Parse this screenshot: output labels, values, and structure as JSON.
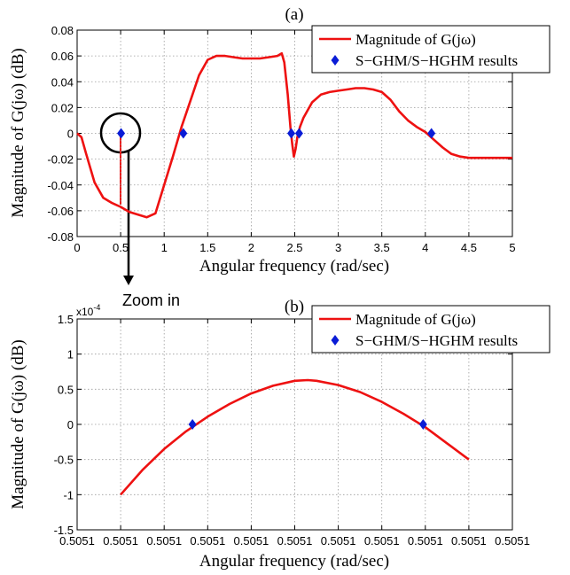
{
  "chart_data": [
    {
      "panel_label": "(a)",
      "type": "line",
      "xlabel": "Angular frequency (rad/sec)",
      "ylabel": "Magnitude of G(jω) (dB)",
      "xlim": [
        0,
        5
      ],
      "ylim": [
        -0.08,
        0.08
      ],
      "xticks": [
        0,
        0.5,
        1,
        1.5,
        2,
        2.5,
        3,
        3.5,
        4,
        4.5,
        5
      ],
      "xtick_labels": [
        "0",
        "0.5",
        "1",
        "1.5",
        "2",
        "2.5",
        "3",
        "3.5",
        "4",
        "4.5",
        "5"
      ],
      "yticks": [
        -0.08,
        -0.06,
        -0.04,
        -0.02,
        0,
        0.02,
        0.04,
        0.06,
        0.08
      ],
      "ytick_labels": [
        "-0.08",
        "-0.06",
        "-0.04",
        "-0.02",
        "0",
        "0.02",
        "0.04",
        "0.06",
        "0.08"
      ],
      "grid": true,
      "legend_position": "top-right",
      "series": [
        {
          "name": "Magnitude of G(jω)",
          "kind": "line",
          "color": "#ee1111",
          "x": [
            0,
            0.05,
            0.1,
            0.2,
            0.3,
            0.4,
            0.5,
            0.6,
            0.7,
            0.8,
            0.9,
            1.0,
            1.1,
            1.2,
            1.3,
            1.4,
            1.5,
            1.6,
            1.7,
            1.8,
            1.9,
            2.0,
            2.1,
            2.2,
            2.3,
            2.35,
            2.38,
            2.42,
            2.45,
            2.47,
            2.49,
            2.51,
            2.53,
            2.56,
            2.6,
            2.7,
            2.8,
            2.9,
            3.0,
            3.1,
            3.2,
            3.3,
            3.4,
            3.5,
            3.6,
            3.7,
            3.8,
            3.9,
            4.0,
            4.1,
            4.2,
            4.3,
            4.4,
            4.5,
            4.6,
            4.7,
            4.8,
            4.9,
            5.0
          ],
          "y": [
            0,
            -0.003,
            -0.015,
            -0.038,
            -0.05,
            -0.054,
            -0.057,
            -0.061,
            -0.063,
            -0.065,
            -0.062,
            -0.04,
            -0.018,
            0.005,
            0.025,
            0.045,
            0.057,
            0.06,
            0.06,
            0.059,
            0.058,
            0.058,
            0.058,
            0.059,
            0.06,
            0.062,
            0.055,
            0.03,
            0.005,
            -0.008,
            -0.018,
            -0.012,
            -0.003,
            0.005,
            0.012,
            0.024,
            0.03,
            0.032,
            0.033,
            0.034,
            0.035,
            0.035,
            0.034,
            0.032,
            0.026,
            0.017,
            0.01,
            0.005,
            0.001,
            -0.005,
            -0.011,
            -0.016,
            -0.018,
            -0.019,
            -0.019,
            -0.019,
            -0.019,
            -0.019,
            -0.019
          ]
        },
        {
          "name": "S−GHM/S−HGHM results",
          "kind": "markers",
          "marker": "diamond",
          "color": "#0a1cd6",
          "x": [
            0.5051,
            1.22,
            2.46,
            2.55,
            4.07
          ],
          "y": [
            0,
            0,
            0,
            0,
            0
          ]
        }
      ],
      "annotations": [
        {
          "text": "Zoom in",
          "kind": "circled-point",
          "x": 0.5051,
          "y": 0
        }
      ]
    },
    {
      "panel_label": "(b)",
      "type": "line",
      "xlabel": "Angular frequency (rad/sec)",
      "ylabel": "Magnitude of G(jω) (dB)",
      "y_scale_label": "x10",
      "y_scale_exponent": "-4",
      "xlim": [
        0,
        10
      ],
      "ylim": [
        -1.5,
        1.5
      ],
      "xticks": [
        0,
        1,
        2,
        3,
        4,
        5,
        6,
        7,
        8,
        9,
        10
      ],
      "xtick_labels": [
        "0.5051",
        "0.5051",
        "0.5051",
        "0.5051",
        "0.5051",
        "0.5051",
        "0.5051",
        "0.5051",
        "0.5051",
        "0.5051",
        "0.5051"
      ],
      "yticks": [
        -1.5,
        -1,
        -0.5,
        0,
        0.5,
        1,
        1.5
      ],
      "ytick_labels": [
        "-1.5",
        "-1",
        "-0.5",
        "0",
        "0.5",
        "1",
        "1.5"
      ],
      "grid": true,
      "legend_position": "top-right",
      "series": [
        {
          "name": "Magnitude of G(jω)",
          "kind": "line",
          "color": "#ee1111",
          "x": [
            1,
            1.5,
            2,
            2.5,
            3,
            3.5,
            4,
            4.5,
            5,
            5.3,
            5.5,
            6,
            6.5,
            7,
            7.5,
            8,
            8.5,
            9
          ],
          "y": [
            -1,
            -0.65,
            -0.35,
            -0.1,
            0.11,
            0.29,
            0.44,
            0.55,
            0.62,
            0.63,
            0.62,
            0.56,
            0.46,
            0.32,
            0.15,
            -0.04,
            -0.27,
            -0.5
          ]
        },
        {
          "name": "S−GHM/S−HGHM results",
          "kind": "markers",
          "marker": "diamond",
          "color": "#0a1cd6",
          "x": [
            2.65,
            7.95
          ],
          "y": [
            0,
            0
          ]
        }
      ]
    }
  ]
}
